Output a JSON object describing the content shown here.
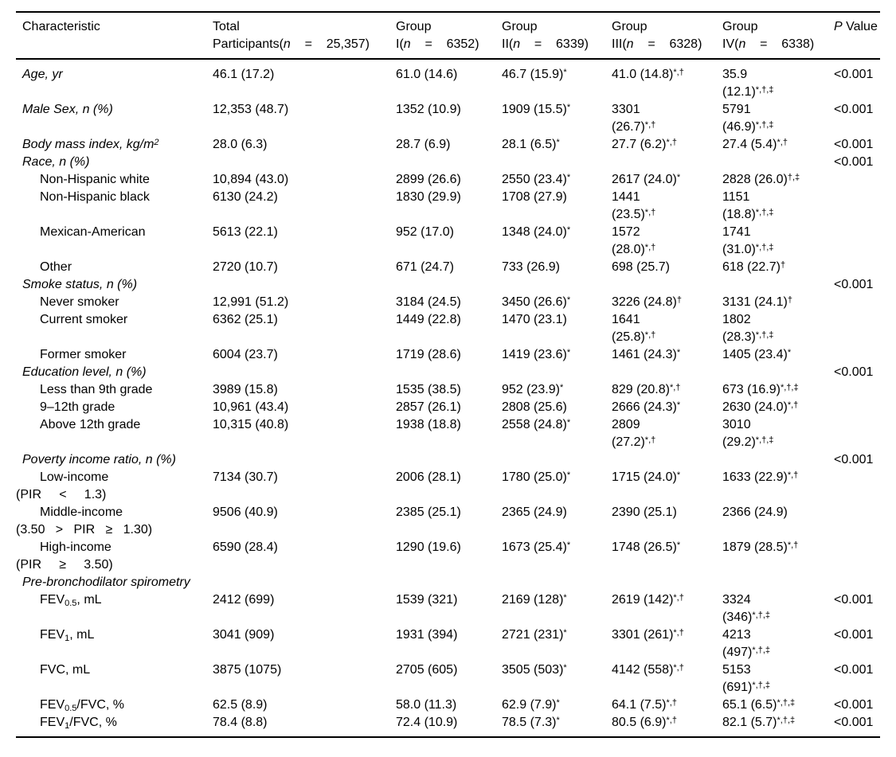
{
  "page": {
    "background": "#ffffff",
    "text_color": "#000000",
    "rule_color": "#000000"
  },
  "table": {
    "columns": [
      {
        "title": "Characteristic"
      },
      {
        "title": "Total",
        "pre": "Participants(",
        "var": "n",
        "post": "    =    25,357)"
      },
      {
        "title": "Group",
        "pre": "I(",
        "var": "n",
        "post": "    =    6352)"
      },
      {
        "title": "Group",
        "pre": "II(",
        "var": "n",
        "post": "    =    6339)"
      },
      {
        "title": "Group",
        "pre": "III(",
        "var": "n",
        "post": "    =    6328)"
      },
      {
        "title": "Group",
        "pre": "IV(",
        "var": "n",
        "post": "    =    6338)"
      },
      {
        "title_italic": "P",
        "title_rest": " Value"
      }
    ],
    "rows": [
      {
        "label": "Age, yr",
        "italic": true,
        "indent": 0,
        "cells": [
          "46.1 (17.2)",
          "61.0 (14.6)",
          "46.7 (15.9)^*^",
          "41.0 (14.8)^*,†^",
          "35.9\n(12.1)^*,†,‡^"
        ],
        "p": "<0.001"
      },
      {
        "label": "Male Sex, n (%)",
        "italic": true,
        "indent": 0,
        "cells": [
          "12,353 (48.7)",
          "1352 (10.9)",
          "1909 (15.5)^*^",
          "3301\n(26.7)^*,†^",
          "5791\n(46.9)^*,†,‡^"
        ],
        "p": "<0.001"
      },
      {
        "label": "Body mass index, kg/m^2^",
        "italic": true,
        "indent": 0,
        "cells": [
          "28.0 (6.3)",
          "28.7 (6.9)",
          "28.1 (6.5)^*^",
          "27.7 (6.2)^*,†^",
          "27.4 (5.4)^*,†^"
        ],
        "p": "<0.001"
      },
      {
        "label": "Race, n (%)",
        "italic": true,
        "indent": 0,
        "cells": [
          "",
          "",
          "",
          "",
          ""
        ],
        "p": "<0.001"
      },
      {
        "label": "Non-Hispanic white",
        "italic": false,
        "indent": 1,
        "cells": [
          "10,894 (43.0)",
          "2899 (26.6)",
          "2550 (23.4)^*^",
          "2617 (24.0)^*^",
          "2828 (26.0)^†,‡^"
        ],
        "p": ""
      },
      {
        "label": "Non-Hispanic black",
        "italic": false,
        "indent": 1,
        "cells": [
          "6130 (24.2)",
          "1830 (29.9)",
          "1708 (27.9)",
          "1441\n(23.5)^*,†^",
          "1151\n(18.8)^*,†,‡^"
        ],
        "p": ""
      },
      {
        "label": "Mexican-American",
        "italic": false,
        "indent": 1,
        "cells": [
          "5613 (22.1)",
          "952 (17.0)",
          "1348 (24.0)^*^",
          "1572\n(28.0)^*,†^",
          "1741\n(31.0)^*,†,‡^"
        ],
        "p": ""
      },
      {
        "label": "Other",
        "italic": false,
        "indent": 1,
        "cells": [
          "2720 (10.7)",
          "671 (24.7)",
          "733 (26.9)",
          "698 (25.7)",
          "618 (22.7)^†^"
        ],
        "p": ""
      },
      {
        "label": "Smoke status, n (%)",
        "italic": true,
        "indent": 0,
        "cells": [
          "",
          "",
          "",
          "",
          ""
        ],
        "p": "<0.001"
      },
      {
        "label": "Never smoker",
        "italic": false,
        "indent": 1,
        "cells": [
          "12,991 (51.2)",
          "3184 (24.5)",
          "3450 (26.6)^*^",
          "3226 (24.8)^†^",
          "3131 (24.1)^†^"
        ],
        "p": ""
      },
      {
        "label": "Current smoker",
        "italic": false,
        "indent": 1,
        "cells": [
          "6362 (25.1)",
          "1449 (22.8)",
          "1470 (23.1)",
          "1641\n(25.8)^*,†^",
          "1802\n(28.3)^*,†,‡^"
        ],
        "p": ""
      },
      {
        "label": "Former smoker",
        "italic": false,
        "indent": 1,
        "cells": [
          "6004 (23.7)",
          "1719 (28.6)",
          "1419 (23.6)^*^",
          "1461 (24.3)^*^",
          "1405 (23.4)^*^"
        ],
        "p": ""
      },
      {
        "label": "Education level, n (%)",
        "italic": true,
        "indent": 0,
        "cells": [
          "",
          "",
          "",
          "",
          ""
        ],
        "p": "<0.001"
      },
      {
        "label": "Less than 9th grade",
        "italic": false,
        "indent": 1,
        "cells": [
          "3989 (15.8)",
          "1535 (38.5)",
          "952 (23.9)^*^",
          "829 (20.8)^*,†^",
          "673 (16.9)^*,†,‡^"
        ],
        "p": ""
      },
      {
        "label": "9–12th grade",
        "italic": false,
        "indent": 1,
        "cells": [
          "10,961 (43.4)",
          "2857 (26.1)",
          "2808 (25.6)",
          "2666 (24.3)^*^",
          "2630 (24.0)^*,†^"
        ],
        "p": ""
      },
      {
        "label": "Above 12th grade",
        "italic": false,
        "indent": 1,
        "cells": [
          "10,315 (40.8)",
          "1938 (18.8)",
          "2558 (24.8)^*^",
          "2809\n(27.2)^*,†^",
          "3010\n(29.2)^*,†,‡^"
        ],
        "p": ""
      },
      {
        "label": "Poverty income ratio, n (%)",
        "italic": true,
        "indent": 0,
        "cells": [
          "",
          "",
          "",
          "",
          ""
        ],
        "p": "<0.001"
      },
      {
        "label": "Low-income",
        "label2": "(PIR     <     1.3)",
        "italic": false,
        "indent": 1,
        "cells": [
          "7134 (30.7)",
          "2006 (28.1)",
          "1780 (25.0)^*^",
          "1715 (24.0)^*^",
          "1633 (22.9)^*,†^"
        ],
        "p": ""
      },
      {
        "label": "Middle-income",
        "label2": "(3.50   >   PIR   ≥   1.30)",
        "italic": false,
        "indent": 1,
        "cells": [
          "9506 (40.9)",
          "2385 (25.1)",
          "2365 (24.9)",
          "2390 (25.1)",
          "2366 (24.9)"
        ],
        "p": ""
      },
      {
        "label": "High-income",
        "label2": "(PIR     ≥     3.50)",
        "italic": false,
        "indent": 1,
        "cells": [
          "6590 (28.4)",
          "1290 (19.6)",
          "1673 (25.4)^*^",
          "1748 (26.5)^*^",
          "1879 (28.5)^*,†^"
        ],
        "p": ""
      },
      {
        "label": "Pre-bronchodilator spirometry",
        "italic": true,
        "indent": 0,
        "cells": [
          "",
          "",
          "",
          "",
          ""
        ],
        "p": ""
      },
      {
        "label": "FEV~0.5~, mL",
        "italic": false,
        "indent": 1,
        "cells": [
          "2412 (699)",
          "1539 (321)",
          "2169 (128)^*^",
          "2619 (142)^*,†^",
          "3324\n(346)^*,†,‡^"
        ],
        "p": "<0.001"
      },
      {
        "label": "FEV~1~, mL",
        "italic": false,
        "indent": 1,
        "cells": [
          "3041 (909)",
          "1931 (394)",
          "2721 (231)^*^",
          "3301 (261)^*,†^",
          "4213\n(497)^*,†,‡^"
        ],
        "p": "<0.001"
      },
      {
        "label": "FVC, mL",
        "italic": false,
        "indent": 1,
        "cells": [
          "3875 (1075)",
          "2705 (605)",
          "3505 (503)^*^",
          "4142 (558)^*,†^",
          "5153\n(691)^*,†,‡^"
        ],
        "p": "<0.001"
      },
      {
        "label": "FEV~0.5~/FVC, %",
        "italic": false,
        "indent": 1,
        "cells": [
          "62.5 (8.9)",
          "58.0 (11.3)",
          "62.9 (7.9)^*^",
          "64.1 (7.5)^*,†^",
          "65.1 (6.5)^*,†,‡^"
        ],
        "p": "<0.001"
      },
      {
        "label": "FEV~1~/FVC, %",
        "italic": false,
        "indent": 1,
        "cells": [
          "78.4 (8.8)",
          "72.4 (10.9)",
          "78.5 (7.3)^*^",
          "80.5 (6.9)^*,†^",
          "82.1 (5.7)^*,†,‡^"
        ],
        "p": "<0.001"
      }
    ]
  }
}
